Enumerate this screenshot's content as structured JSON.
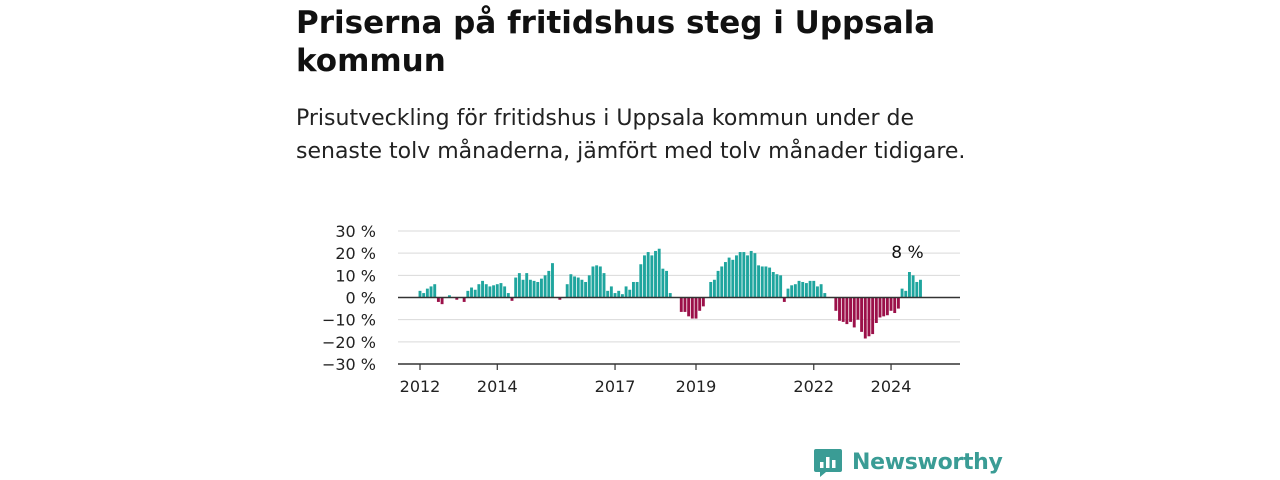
{
  "header": {
    "title": "Priserna på fritidshus steg i Uppsala kommun",
    "subtitle": "Prisutveckling för fritidshus i Uppsala kommun under de senaste tolv månaderna, jämfört med tolv månader tidigare."
  },
  "brand": {
    "name": "Newsworthy",
    "color": "#3a9c95",
    "icon": "newsworthy-chart-icon"
  },
  "colors": {
    "positive": "#1fa59e",
    "negative": "#9b1049",
    "grid": "#d9d9d9",
    "axis": "#333333"
  },
  "chart_data": {
    "type": "bar",
    "title": "Priserna på fritidshus steg i Uppsala kommun",
    "ylabel": "",
    "xlabel": "",
    "ylim": [
      -30,
      30
    ],
    "yticks": [
      30,
      20,
      10,
      0,
      -10,
      -20,
      -30
    ],
    "ytick_labels": [
      "30 %",
      "20 %",
      "10 %",
      "0 %",
      "−10 %",
      "−20 %",
      "−30 %"
    ],
    "xticks": [
      {
        "label": "2012",
        "index": 0
      },
      {
        "label": "2014",
        "index": 21
      },
      {
        "label": "2017",
        "index": 53
      },
      {
        "label": "2019",
        "index": 75
      },
      {
        "label": "2022",
        "index": 107
      },
      {
        "label": "2024",
        "index": 128
      }
    ],
    "annotation": {
      "text": "8 %",
      "index": 133
    },
    "values": [
      3,
      2,
      4,
      5,
      6,
      -2,
      -3,
      0,
      1,
      0,
      -1,
      0,
      -2,
      3,
      4.5,
      3.5,
      6,
      7.5,
      6,
      5,
      5.5,
      6,
      6.5,
      5,
      2,
      -1.5,
      9,
      11,
      8,
      11,
      8,
      7.5,
      7,
      8.5,
      10,
      12,
      15.5,
      0,
      -1,
      0,
      6,
      10.5,
      9.5,
      9,
      8,
      7,
      10,
      14,
      14.5,
      14,
      11,
      3,
      5,
      2,
      3,
      1.5,
      5,
      3.5,
      7,
      7,
      15,
      19,
      20.5,
      19,
      21,
      22,
      13,
      12,
      2,
      0,
      0,
      -6.5,
      -6.5,
      -8.5,
      -9.5,
      -9.5,
      -6,
      -4,
      0,
      7,
      8,
      12,
      14,
      16,
      18,
      17,
      19,
      20.5,
      20.5,
      19,
      21,
      20,
      14.5,
      14,
      14,
      13.5,
      11.5,
      10.5,
      10,
      -2,
      4,
      5.5,
      6,
      7.5,
      7,
      6.5,
      7.5,
      7.5,
      5,
      6,
      2,
      0,
      0,
      -6,
      -10.5,
      -11,
      -12,
      -11,
      -13.5,
      -10,
      -15.5,
      -18.5,
      -17.5,
      -16.5,
      -11.5,
      -9,
      -8.5,
      -8,
      -6,
      -7,
      -5,
      4,
      3,
      11.5,
      10,
      7,
      8
    ]
  }
}
